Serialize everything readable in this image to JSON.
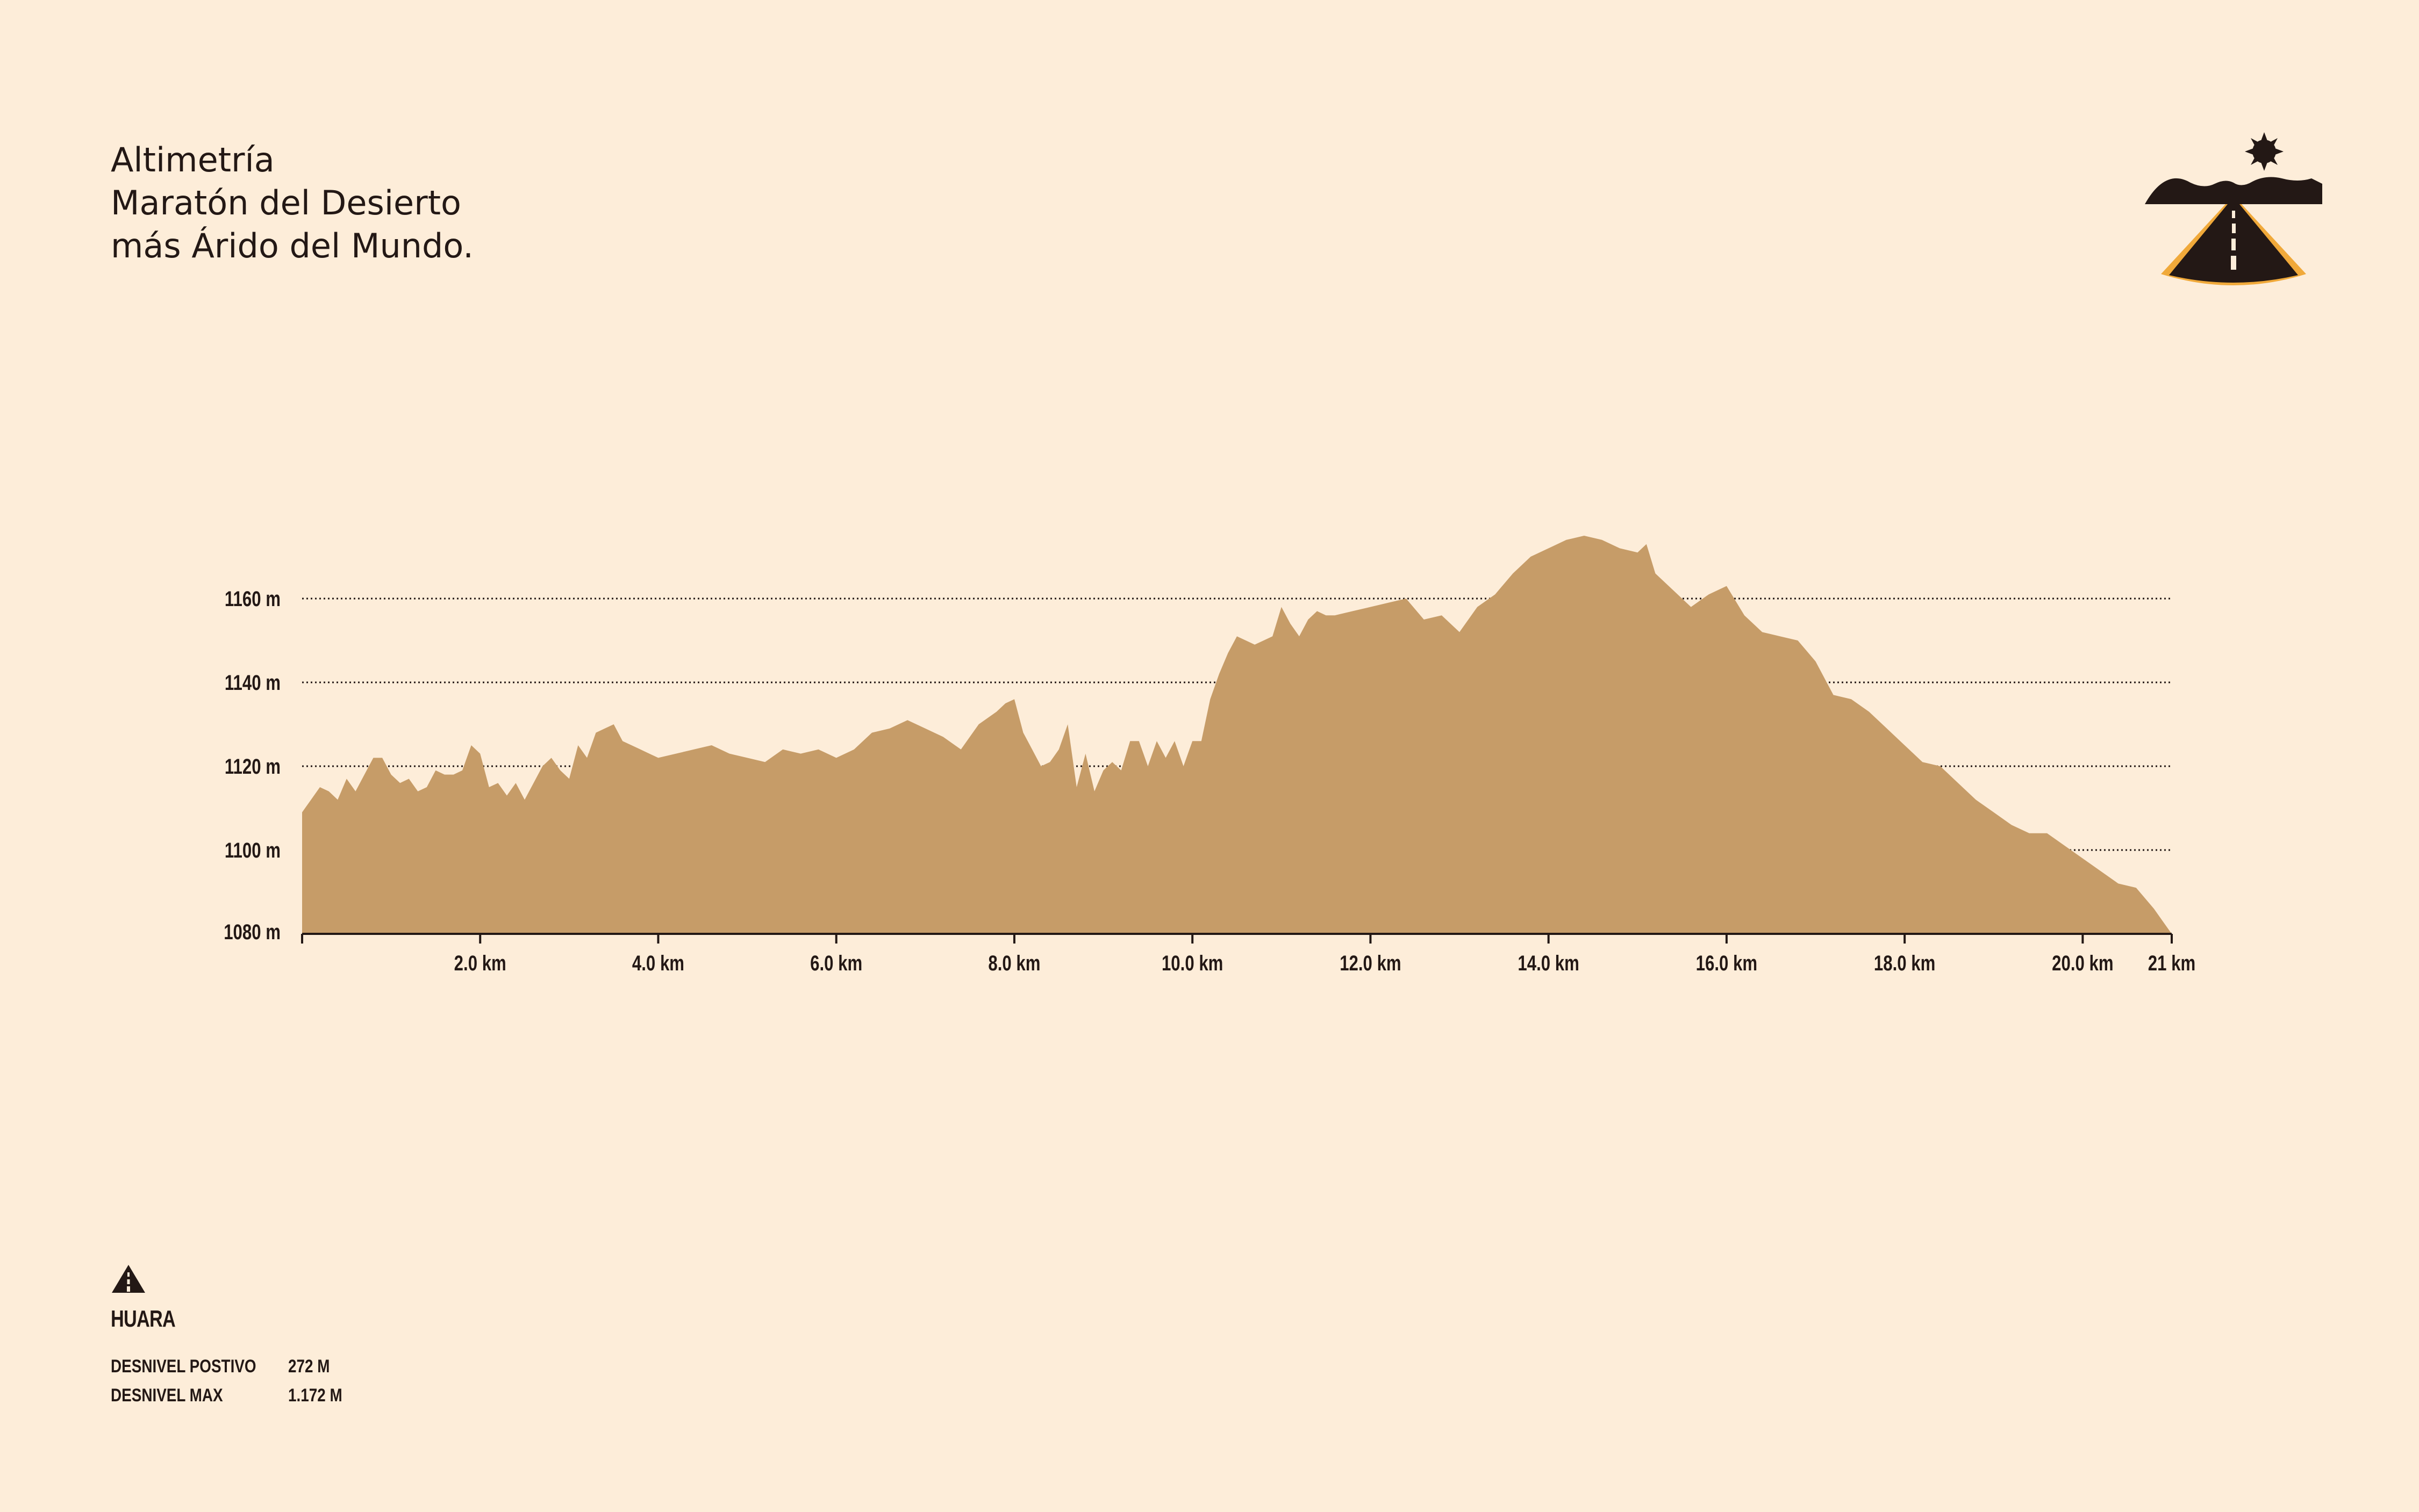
{
  "title": {
    "line1": "Altimetría",
    "line2": "Maratón del Desierto",
    "line3": "más Árido del Mundo."
  },
  "logo": {
    "icon": "desert-road-sun-logo"
  },
  "legend": {
    "icon": "road-triangle-icon",
    "place": "HUARA",
    "stats": [
      {
        "label": "DESNIVEL POSTIVO",
        "value": "272 M"
      },
      {
        "label": "DESNIVEL MAX",
        "value": "1.172 M"
      }
    ]
  },
  "colors": {
    "background": "#fdedd9",
    "area_fill": "#c69c68",
    "text": "#231815",
    "accent": "#f0a93a"
  },
  "chart_data": {
    "type": "area",
    "title": "",
    "xlabel": "",
    "ylabel": "",
    "xlim": [
      0,
      21
    ],
    "ylim": [
      1080,
      1180
    ],
    "y_ticks": [
      1080,
      1100,
      1120,
      1140,
      1160
    ],
    "y_tick_labels": [
      "1080 m",
      "1100 m",
      "1120 m",
      "1140 m",
      "1160 m"
    ],
    "x_ticks": [
      2,
      4,
      6,
      8,
      10,
      12,
      14,
      16,
      18,
      20,
      21
    ],
    "x_tick_labels": [
      "2.0 km",
      "4.0 km",
      "6.0 km",
      "8.0 km",
      "10.0 km",
      "12.0 km",
      "14.0 km",
      "16.0 km",
      "18.0 km",
      "20.0 km",
      "21 km"
    ],
    "grid": "horizontal dotted",
    "x": [
      0,
      0.1,
      0.2,
      0.3,
      0.4,
      0.5,
      0.6,
      0.7,
      0.8,
      0.9,
      1.0,
      1.1,
      1.2,
      1.3,
      1.4,
      1.5,
      1.6,
      1.7,
      1.8,
      1.9,
      2.0,
      2.1,
      2.2,
      2.3,
      2.4,
      2.5,
      2.6,
      2.7,
      2.8,
      2.9,
      3.0,
      3.1,
      3.2,
      3.3,
      3.4,
      3.5,
      3.6,
      3.7,
      3.8,
      3.9,
      4.0,
      4.2,
      4.4,
      4.6,
      4.8,
      5.0,
      5.2,
      5.4,
      5.6,
      5.8,
      6.0,
      6.2,
      6.4,
      6.6,
      6.8,
      7.0,
      7.2,
      7.4,
      7.6,
      7.8,
      7.9,
      8.0,
      8.1,
      8.2,
      8.3,
      8.4,
      8.5,
      8.6,
      8.7,
      8.8,
      8.9,
      9.0,
      9.1,
      9.2,
      9.3,
      9.4,
      9.5,
      9.6,
      9.7,
      9.8,
      9.9,
      10.0,
      10.1,
      10.2,
      10.3,
      10.4,
      10.5,
      10.6,
      10.7,
      10.8,
      10.9,
      11.0,
      11.1,
      11.2,
      11.3,
      11.4,
      11.5,
      11.6,
      11.8,
      12.0,
      12.2,
      12.4,
      12.6,
      12.8,
      13.0,
      13.2,
      13.4,
      13.6,
      13.8,
      14.0,
      14.2,
      14.4,
      14.6,
      14.8,
      15.0,
      15.1,
      15.2,
      15.4,
      15.6,
      15.8,
      16.0,
      16.2,
      16.4,
      16.6,
      16.8,
      17.0,
      17.2,
      17.4,
      17.6,
      17.8,
      18.0,
      18.2,
      18.4,
      18.6,
      18.8,
      19.0,
      19.2,
      19.4,
      19.6,
      19.8,
      20.0,
      20.2,
      20.4,
      20.6,
      20.8,
      20.9,
      21.0
    ],
    "series": [
      {
        "values": [
          1109,
          1112,
          1115,
          1114,
          1112,
          1117,
          1114,
          1118,
          1122,
          1122,
          1118,
          1116,
          1117,
          1114,
          1115,
          1119,
          1118,
          1118,
          1119,
          1125,
          1123,
          1115,
          1116,
          1113,
          1116,
          1112,
          1116,
          1120,
          1122,
          1119,
          1117,
          1125,
          1122,
          1128,
          1129,
          1130,
          1126,
          1125,
          1124,
          1123,
          1122,
          1123,
          1124,
          1125,
          1123,
          1122,
          1121,
          1124,
          1123,
          1124,
          1122,
          1124,
          1128,
          1129,
          1131,
          1129,
          1127,
          1124,
          1130,
          1133,
          1135,
          1136,
          1128,
          1124,
          1120,
          1121,
          1124,
          1130,
          1115,
          1123,
          1114,
          1119,
          1121,
          1119,
          1126,
          1126,
          1120,
          1126,
          1122,
          1126,
          1120,
          1126,
          1126,
          1136,
          1142,
          1147,
          1151,
          1150,
          1149,
          1150,
          1151,
          1158,
          1154,
          1151,
          1155,
          1157,
          1156,
          1156,
          1157,
          1158,
          1159,
          1160,
          1155,
          1156,
          1152,
          1158,
          1161,
          1166,
          1170,
          1172,
          1174,
          1175,
          1174,
          1172,
          1171,
          1173,
          1166,
          1162,
          1158,
          1161,
          1163,
          1156,
          1152,
          1151,
          1150,
          1145,
          1137,
          1136,
          1133,
          1129,
          1125,
          1121,
          1120,
          1116,
          1112,
          1109,
          1106,
          1104,
          1104,
          1101,
          1098,
          1095,
          1092,
          1091,
          1086,
          1083,
          1080
        ]
      }
    ]
  }
}
